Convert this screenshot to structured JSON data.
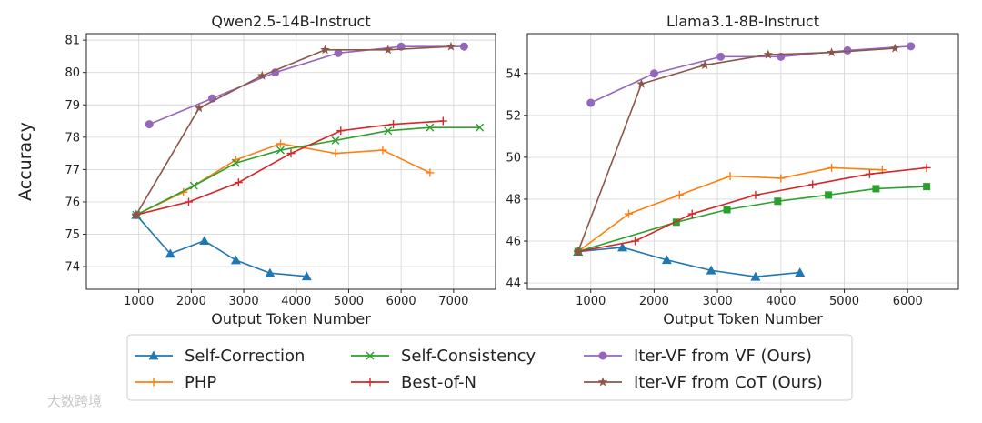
{
  "chart_data": [
    {
      "type": "line",
      "title": "Qwen2.5-14B-Instruct",
      "xlabel": "Output Token Number",
      "ylabel": "Accuracy",
      "xlim": [
        0,
        7800
      ],
      "ylim": [
        73.3,
        81.2
      ],
      "xticks": [
        1000,
        2000,
        3000,
        4000,
        5000,
        6000,
        7000
      ],
      "yticks": [
        74,
        75,
        76,
        77,
        78,
        79,
        80,
        81
      ],
      "grid": true,
      "series": [
        {
          "name": "Self-Correction",
          "x": [
            950,
            1600,
            2250,
            2850,
            3500,
            4200
          ],
          "y": [
            75.6,
            74.4,
            74.8,
            74.2,
            73.8,
            73.7
          ]
        },
        {
          "name": "PHP",
          "x": [
            950,
            1850,
            2850,
            3700,
            4750,
            5650,
            6550
          ],
          "y": [
            75.6,
            76.3,
            77.3,
            77.8,
            77.5,
            77.6,
            76.9
          ]
        },
        {
          "name": "Self-Consistency",
          "x": [
            950,
            2050,
            2850,
            3700,
            4750,
            5750,
            6550,
            7500
          ],
          "y": [
            75.6,
            76.5,
            77.2,
            77.6,
            77.9,
            78.2,
            78.3,
            78.3
          ]
        },
        {
          "name": "Best-of-N",
          "x": [
            950,
            1950,
            2900,
            3900,
            4850,
            5850,
            6800
          ],
          "y": [
            75.6,
            76.0,
            76.6,
            77.5,
            78.2,
            78.4,
            78.5
          ]
        },
        {
          "name": "Iter-VF from VF (Ours)",
          "x": [
            1200,
            2400,
            3600,
            4800,
            6000,
            7200
          ],
          "y": [
            78.4,
            79.2,
            80.0,
            80.6,
            80.8,
            80.8
          ]
        },
        {
          "name": "Iter-VF from CoT (Ours)",
          "x": [
            950,
            2150,
            3350,
            4550,
            5750,
            6950
          ],
          "y": [
            75.6,
            78.9,
            79.9,
            80.7,
            80.7,
            80.8
          ]
        }
      ]
    },
    {
      "type": "line",
      "title": "Llama3.1-8B-Instruct",
      "xlabel": "Output Token Number",
      "ylabel": "",
      "xlim": [
        0,
        6800
      ],
      "ylim": [
        43.7,
        55.9
      ],
      "xticks": [
        1000,
        2000,
        3000,
        4000,
        5000,
        6000
      ],
      "yticks": [
        44,
        46,
        48,
        50,
        52,
        54
      ],
      "grid": true,
      "series": [
        {
          "name": "Self-Correction",
          "x": [
            800,
            1500,
            2200,
            2900,
            3600,
            4300
          ],
          "y": [
            45.5,
            45.7,
            45.1,
            44.6,
            44.3,
            44.5
          ]
        },
        {
          "name": "PHP",
          "x": [
            800,
            1600,
            2400,
            3200,
            4000,
            4800,
            5600
          ],
          "y": [
            45.5,
            47.3,
            48.2,
            49.1,
            49.0,
            49.5,
            49.4
          ]
        },
        {
          "name": "Self-Consistency",
          "x": [
            800,
            2350,
            3150,
            3950,
            4750,
            5500,
            6300
          ],
          "y": [
            45.5,
            46.9,
            47.5,
            47.9,
            48.2,
            48.5,
            48.6
          ]
        },
        {
          "name": "Best-of-N",
          "x": [
            800,
            1700,
            2600,
            3600,
            4500,
            5400,
            6300
          ],
          "y": [
            45.5,
            46.0,
            47.3,
            48.2,
            48.7,
            49.2,
            49.5
          ]
        },
        {
          "name": "Iter-VF from VF (Ours)",
          "x": [
            1000,
            2000,
            3050,
            4000,
            5050,
            6050
          ],
          "y": [
            52.6,
            54.0,
            54.8,
            54.8,
            55.1,
            55.3
          ]
        },
        {
          "name": "Iter-VF from CoT (Ours)",
          "x": [
            800,
            1800,
            2800,
            3800,
            4800,
            5800
          ],
          "y": [
            45.5,
            53.5,
            54.4,
            54.9,
            55.0,
            55.2
          ]
        }
      ]
    }
  ],
  "legend": [
    {
      "name": "Self-Correction",
      "color": "#1f77b4",
      "marker": "triangle"
    },
    {
      "name": "Self-Consistency",
      "color": "#2ca02c",
      "marker": "x"
    },
    {
      "name": "Iter-VF from VF (Ours)",
      "color": "#9467bd",
      "marker": "circle"
    },
    {
      "name": "PHP",
      "color": "#ff7f0e",
      "marker": "plus"
    },
    {
      "name": "Best-of-N",
      "color": "#d62728",
      "marker": "plus"
    },
    {
      "name": "Iter-VF from CoT (Ours)",
      "color": "#8c564b",
      "marker": "star"
    }
  ],
  "watermark": "大数跨境"
}
